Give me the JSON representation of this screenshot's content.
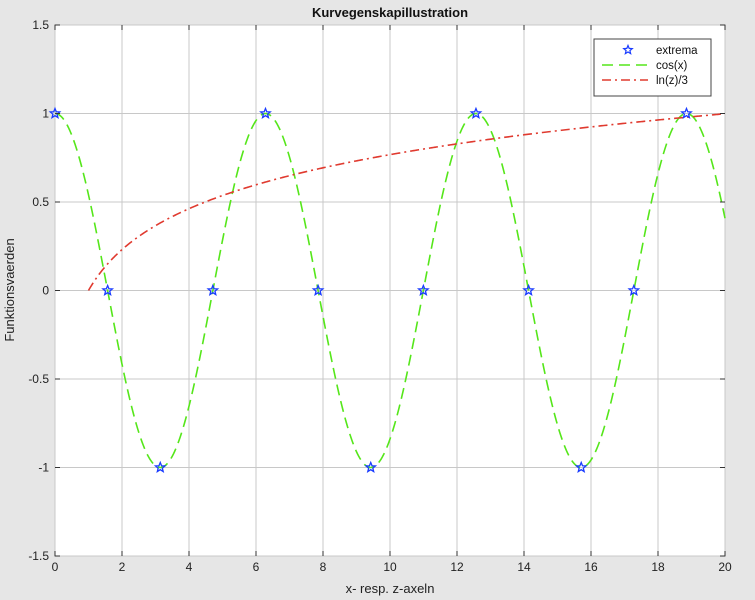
{
  "chart_data": {
    "type": "line",
    "title": "Kurvegenskapillustration",
    "xlabel": "x- resp. z-axeln",
    "ylabel": "Funktionsvaerden",
    "xlim": [
      0,
      20
    ],
    "ylim": [
      -1.5,
      1.5
    ],
    "xticks": [
      0,
      2,
      4,
      6,
      8,
      10,
      12,
      14,
      16,
      18,
      20
    ],
    "yticks": [
      -1.5,
      -1,
      -0.5,
      0,
      0.5,
      1,
      1.5
    ],
    "grid": true,
    "legend_position": "top-right",
    "series": [
      {
        "name": "extrema",
        "style": "markers-star",
        "color": "#1a3cff",
        "points": [
          [
            0,
            1
          ],
          [
            1.571,
            0
          ],
          [
            3.142,
            -1
          ],
          [
            4.712,
            0
          ],
          [
            6.283,
            1
          ],
          [
            7.854,
            0
          ],
          [
            9.425,
            -1
          ],
          [
            10.996,
            0
          ],
          [
            12.566,
            1
          ],
          [
            14.137,
            0
          ],
          [
            15.708,
            -1
          ],
          [
            17.279,
            0
          ],
          [
            18.85,
            1
          ]
        ]
      },
      {
        "name": "cos(x)",
        "style": "dashed",
        "color": "#55e61a",
        "function": "cos(x)",
        "x_range": [
          0,
          20
        ]
      },
      {
        "name": "ln(z)/3",
        "style": "dash-dot",
        "color": "#e03a2f",
        "function": "ln(z)/3",
        "x_range": [
          1,
          20
        ]
      }
    ]
  }
}
